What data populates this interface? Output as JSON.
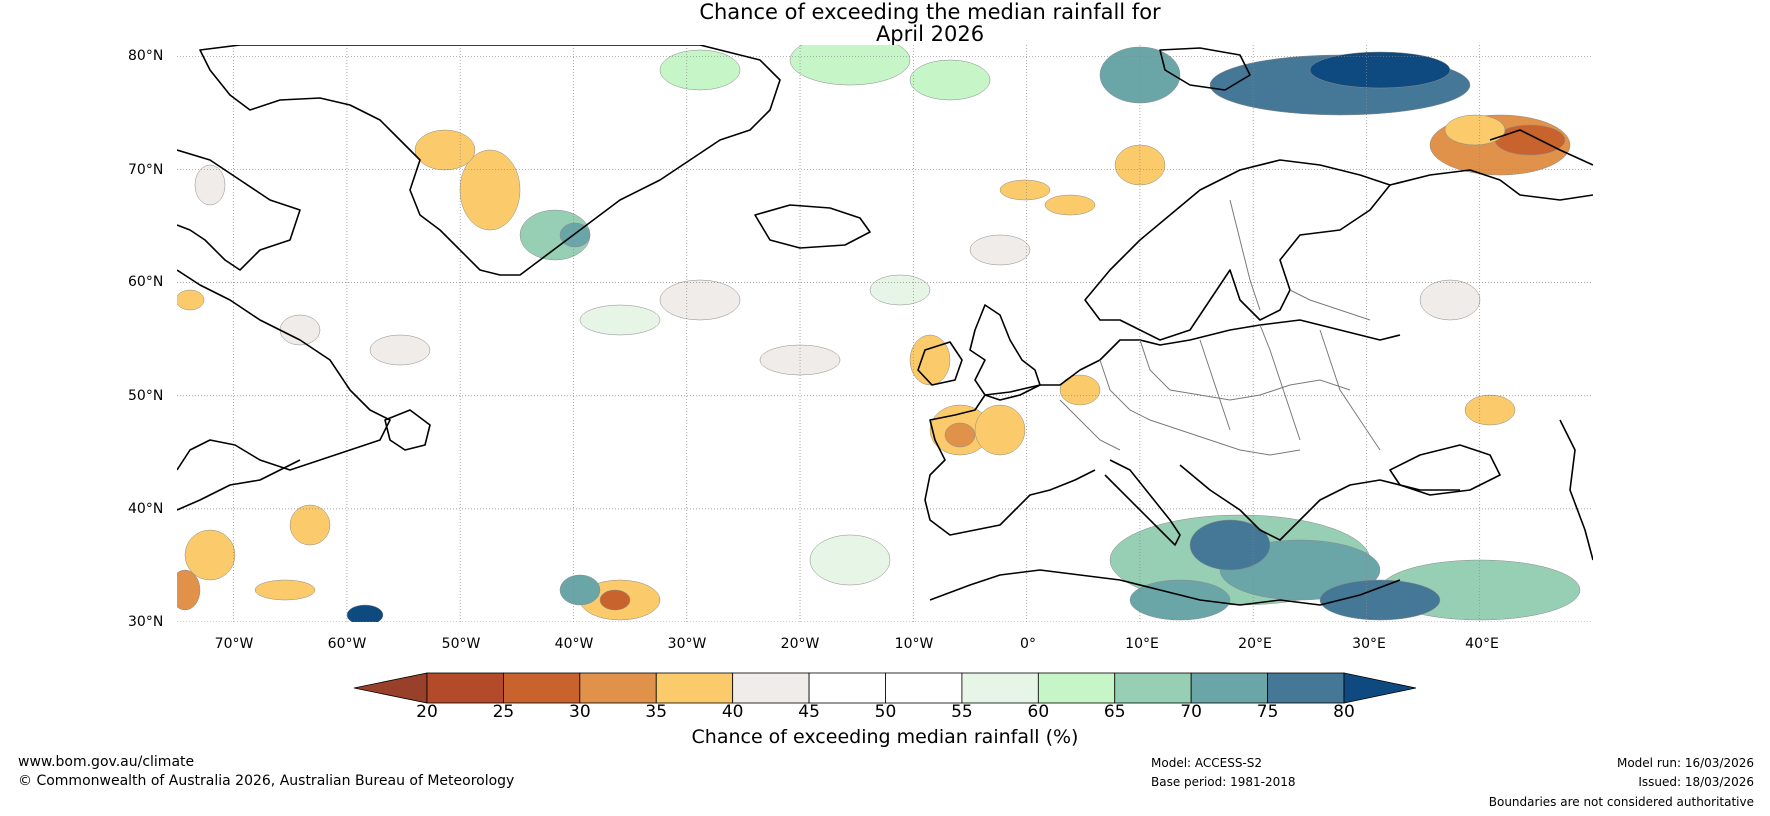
{
  "title": {
    "line1": "Chance of exceeding the median rainfall for",
    "line2": "April 2026"
  },
  "map": {
    "lat_labels": [
      "80°N",
      "70°N",
      "60°N",
      "50°N",
      "40°N",
      "30°N"
    ],
    "lon_labels": [
      "70°W",
      "60°W",
      "50°W",
      "40°W",
      "30°W",
      "20°W",
      "10°W",
      "0°",
      "10°E",
      "20°E",
      "30°E",
      "40°E"
    ],
    "lat_range": [
      30,
      81
    ],
    "lon_range": [
      -75,
      50
    ]
  },
  "colorbar": {
    "ticks": [
      "20",
      "25",
      "30",
      "35",
      "40",
      "45",
      "50",
      "55",
      "60",
      "65",
      "70",
      "75",
      "80"
    ],
    "colors": [
      "#b34a2a",
      "#c9632e",
      "#e0914a",
      "#fbcb6b",
      "#f0ece9",
      "#ffffff",
      "#ffffff",
      "#e6f5e6",
      "#c6f5c8",
      "#97cfb4",
      "#6aa5a8",
      "#457896"
    ],
    "under_color": "#99402b",
    "over_color": "#0e4a7f",
    "label": "Chance of exceeding median rainfall (%)"
  },
  "footer": {
    "website": "www.bom.gov.au/climate",
    "copyright": "© Commonwealth of Australia 2026, Australian Bureau of Meteorology",
    "model": "Model: ACCESS-S2",
    "base_period": "Base period: 1981-2018",
    "model_run": "Model run: 16/03/2026",
    "issued": "Issued: 18/03/2026",
    "disclaimer": "Boundaries are not considered authoritative"
  }
}
